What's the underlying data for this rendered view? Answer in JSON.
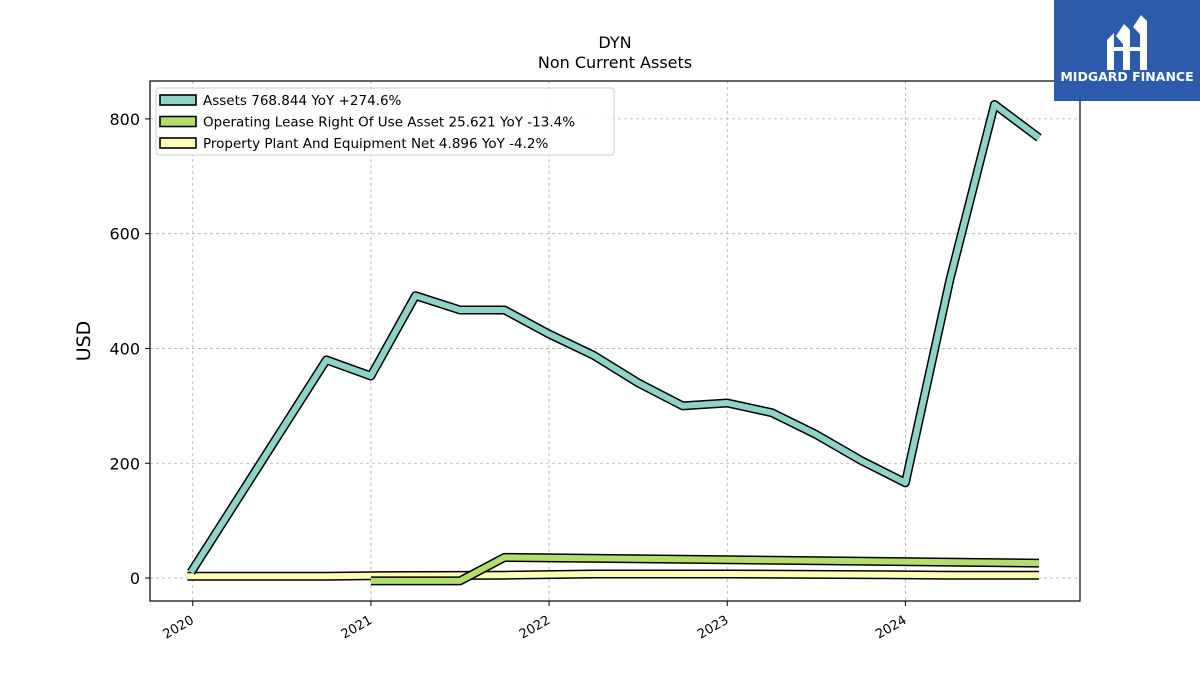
{
  "chart_data": {
    "type": "line",
    "title": "DYN",
    "subtitle": "Non Current  Assets",
    "xlabel": "",
    "ylabel": "USD",
    "xlim": [
      2019.76,
      2024.98
    ],
    "ylim": [
      -40,
      866
    ],
    "x_ticks": [
      2020,
      2021,
      2022,
      2023,
      2024
    ],
    "y_ticks": [
      0,
      200,
      400,
      600,
      800
    ],
    "grid": true,
    "legend_position": "top-left",
    "series": [
      {
        "name": "Assets  768.844 YoY +274.6%",
        "color": "#8dd3c7",
        "x": [
          2019.99,
          2020.75,
          2021.0,
          2021.25,
          2021.5,
          2021.75,
          2022.0,
          2022.25,
          2022.5,
          2022.75,
          2023.0,
          2023.25,
          2023.5,
          2023.75,
          2024.0,
          2024.25,
          2024.5,
          2024.75
        ],
        "y": [
          10,
          380,
          352,
          492,
          467,
          467,
          425,
          388,
          340,
          300,
          305,
          288,
          250,
          205,
          166,
          520,
          825,
          767
        ]
      },
      {
        "name": "Operating Lease Right Of Use Asset  25.621 YoY -13.4%",
        "color": "#b3de69",
        "x": [
          2021.0,
          2021.5,
          2021.75,
          2024.75
        ],
        "y": [
          -5,
          -5,
          36,
          26
        ]
      },
      {
        "name": "Property Plant And Equipment Net  4.896 YoY -4.2%",
        "color": "#ffffb3",
        "x": [
          2019.97,
          2020.75,
          2021.0,
          2021.75,
          2022.25,
          2023.0,
          2023.75,
          2024.25,
          2024.75
        ],
        "y": [
          3,
          3,
          4,
          5,
          7,
          7,
          6,
          5,
          5
        ]
      }
    ]
  },
  "logo": {
    "text": "MIDGARD FINANCE",
    "background": "#2b5baa"
  }
}
